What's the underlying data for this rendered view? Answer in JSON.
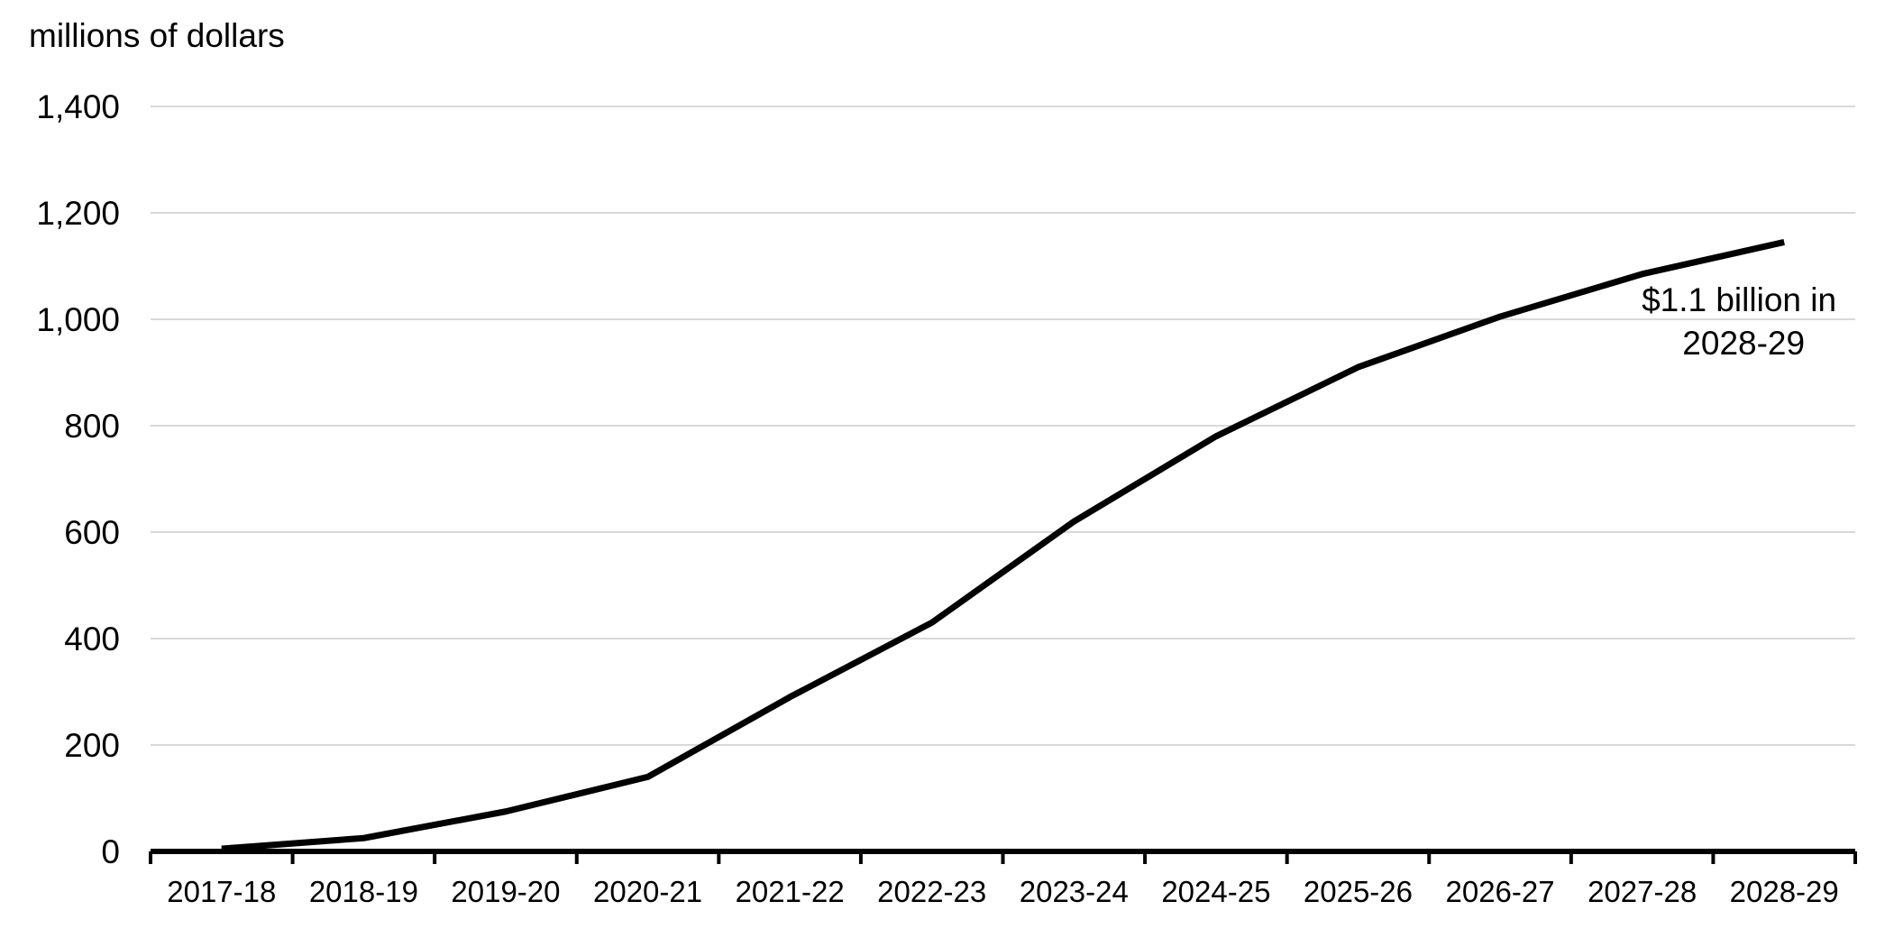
{
  "chart_data": {
    "type": "line",
    "title": "",
    "ylabel": "millions of dollars",
    "xlabel": "",
    "categories": [
      "2017-18",
      "2018-19",
      "2019-20",
      "2020-21",
      "2021-22",
      "2022-23",
      "2023-24",
      "2024-25",
      "2025-26",
      "2026-27",
      "2027-28",
      "2028-29"
    ],
    "series": [
      {
        "values": [
          5,
          25,
          75,
          140,
          290,
          430,
          620,
          780,
          910,
          1005,
          1085,
          1145
        ]
      }
    ],
    "ylim": [
      0,
      1400
    ],
    "yticks": [
      0,
      200,
      400,
      600,
      800,
      1000,
      1200,
      1400
    ],
    "ytick_labels": [
      "0",
      "200",
      "400",
      "600",
      "800",
      "1,000",
      "1,200",
      "1,400"
    ],
    "grid": true,
    "legend": "none",
    "line_color": "#000000",
    "grid_color": "#d9d9d9",
    "annotation": {
      "lines": [
        "$1.1 billion in",
        "2028-29"
      ],
      "anchor_category": "2028-29"
    }
  }
}
